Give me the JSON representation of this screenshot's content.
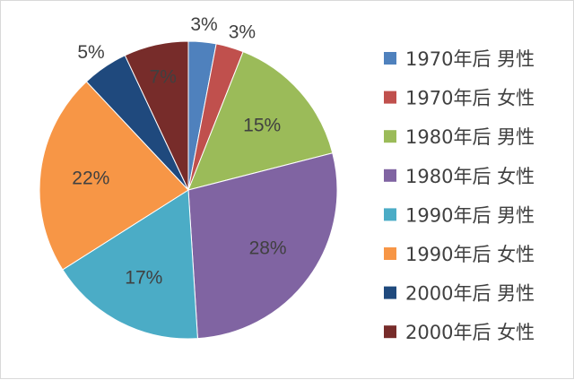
{
  "chart_data": {
    "type": "pie",
    "title": "",
    "legend_position": "right",
    "start_angle_deg": 0,
    "direction": "clockwise",
    "slices": [
      {
        "label": "1970年后 男性",
        "value": 3,
        "pct_label": "3%",
        "color": "#4f81bd"
      },
      {
        "label": "1970年后 女性",
        "value": 3,
        "pct_label": "3%",
        "color": "#c0504d"
      },
      {
        "label": "1980年后 男性",
        "value": 15,
        "pct_label": "15%",
        "color": "#9bbb59"
      },
      {
        "label": "1980年后 女性",
        "value": 28,
        "pct_label": "28%",
        "color": "#8064a2"
      },
      {
        "label": "1990年后 男性",
        "value": 17,
        "pct_label": "17%",
        "color": "#4bacc6"
      },
      {
        "label": "1990年后 女性",
        "value": 22,
        "pct_label": "22%",
        "color": "#f79646"
      },
      {
        "label": "2000年后 男性",
        "value": 5,
        "pct_label": "5%",
        "color": "#1f497d"
      },
      {
        "label": "2000年后 女性",
        "value": 7,
        "pct_label": "7%",
        "color": "#772c2a"
      }
    ]
  }
}
